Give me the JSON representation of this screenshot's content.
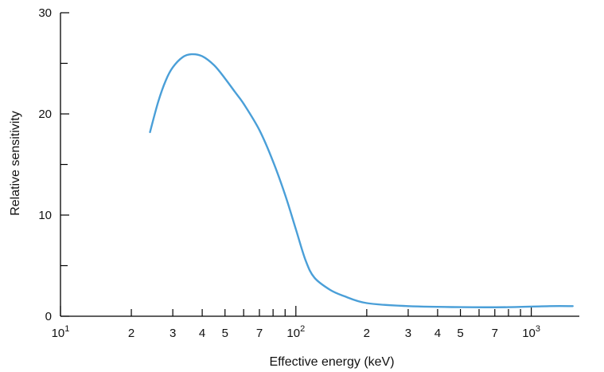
{
  "chart_data": {
    "type": "line",
    "title": "",
    "xlabel": "Effective energy (keV)",
    "ylabel": "Relative sensitivity",
    "x_scale": "log",
    "xlim": [
      10,
      1600
    ],
    "ylim": [
      0,
      30
    ],
    "grid": false,
    "y_ticks": [
      {
        "value": 0,
        "label": "0"
      },
      {
        "value": 10,
        "label": "10"
      },
      {
        "value": 20,
        "label": "20"
      },
      {
        "value": 30,
        "label": "30"
      }
    ],
    "y_minor_ticks": [
      5,
      15,
      25
    ],
    "x_ticks": [
      {
        "value": 10,
        "label": "10",
        "exp": "1",
        "major": true
      },
      {
        "value": 20,
        "label": "2",
        "major": false
      },
      {
        "value": 30,
        "label": "3",
        "major": false
      },
      {
        "value": 40,
        "label": "4",
        "major": false
      },
      {
        "value": 50,
        "label": "5",
        "major": false
      },
      {
        "value": 70,
        "label": "7",
        "major": false
      },
      {
        "value": 100,
        "label": "10",
        "exp": "2",
        "major": true
      },
      {
        "value": 200,
        "label": "2",
        "major": false
      },
      {
        "value": 300,
        "label": "3",
        "major": false
      },
      {
        "value": 400,
        "label": "4",
        "major": false
      },
      {
        "value": 500,
        "label": "5",
        "major": false
      },
      {
        "value": 700,
        "label": "7",
        "major": false
      },
      {
        "value": 1000,
        "label": "10",
        "exp": "3",
        "major": true
      }
    ],
    "x_unlabeled_ticks": [
      60,
      80,
      90,
      600,
      800,
      900
    ],
    "series": [
      {
        "color": "#4a9fd8",
        "points": [
          {
            "x": 24,
            "y": 18.2
          },
          {
            "x": 26,
            "y": 21.2
          },
          {
            "x": 28,
            "y": 23.3
          },
          {
            "x": 30,
            "y": 24.6
          },
          {
            "x": 33,
            "y": 25.6
          },
          {
            "x": 36,
            "y": 25.9
          },
          {
            "x": 40,
            "y": 25.7
          },
          {
            "x": 45,
            "y": 24.8
          },
          {
            "x": 50,
            "y": 23.5
          },
          {
            "x": 55,
            "y": 22.2
          },
          {
            "x": 60,
            "y": 21.0
          },
          {
            "x": 70,
            "y": 18.4
          },
          {
            "x": 80,
            "y": 15.3
          },
          {
            "x": 90,
            "y": 12.0
          },
          {
            "x": 100,
            "y": 8.6
          },
          {
            "x": 110,
            "y": 5.5
          },
          {
            "x": 120,
            "y": 3.8
          },
          {
            "x": 140,
            "y": 2.6
          },
          {
            "x": 160,
            "y": 2.0
          },
          {
            "x": 200,
            "y": 1.3
          },
          {
            "x": 300,
            "y": 1.0
          },
          {
            "x": 500,
            "y": 0.9
          },
          {
            "x": 800,
            "y": 0.9
          },
          {
            "x": 1200,
            "y": 1.0
          },
          {
            "x": 1500,
            "y": 1.0
          }
        ]
      }
    ]
  }
}
